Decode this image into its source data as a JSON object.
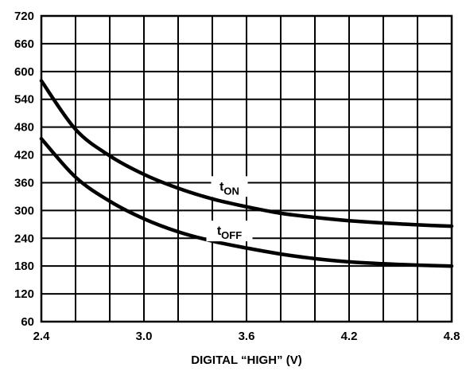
{
  "chart_data": {
    "type": "line",
    "title": "",
    "xlabel": "DIGITAL “HIGH” (V)",
    "ylabel": "",
    "xlim": [
      2.4,
      4.8
    ],
    "ylim": [
      60,
      720
    ],
    "xticks": [
      "2.4",
      "3.0",
      "3.6",
      "4.2",
      "4.8"
    ],
    "yticks": [
      "60",
      "120",
      "180",
      "240",
      "300",
      "360",
      "420",
      "480",
      "540",
      "600",
      "660",
      "720"
    ],
    "grid": true,
    "series": [
      {
        "name": "tON",
        "label_main": "t",
        "label_sub": "ON",
        "x": [
          2.4,
          2.6,
          2.8,
          3.0,
          3.2,
          3.4,
          3.6,
          3.8,
          4.0,
          4.2,
          4.4,
          4.6,
          4.8
        ],
        "y": [
          580,
          475,
          418,
          378,
          348,
          325,
          308,
          294,
          285,
          278,
          273,
          269,
          266
        ]
      },
      {
        "name": "tOFF",
        "label_main": "t",
        "label_sub": "OFF",
        "x": [
          2.4,
          2.6,
          2.8,
          3.0,
          3.2,
          3.4,
          3.6,
          3.8,
          4.0,
          4.2,
          4.4,
          4.6,
          4.8
        ],
        "y": [
          455,
          372,
          320,
          282,
          254,
          234,
          219,
          206,
          196,
          189,
          185,
          182,
          180
        ]
      }
    ]
  }
}
